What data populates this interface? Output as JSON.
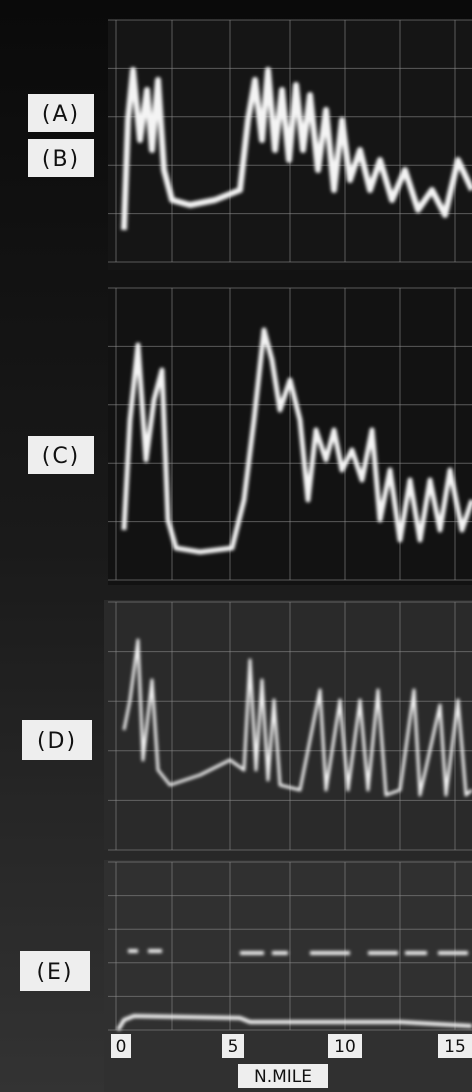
{
  "panels": [
    {
      "label": "(A)"
    },
    {
      "label": "(B)"
    },
    {
      "label": "(C)"
    },
    {
      "label": "(D)"
    },
    {
      "label": "(E)"
    }
  ],
  "scale": {
    "ticks": [
      0,
      5,
      10,
      15
    ],
    "unit": "N.MILE"
  }
}
